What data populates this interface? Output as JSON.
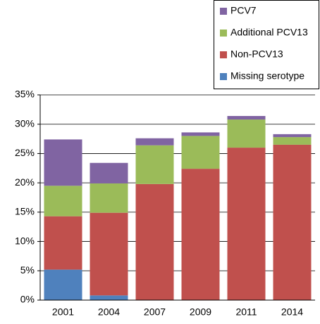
{
  "chart_data": {
    "type": "stacked_bar",
    "categories": [
      "2001",
      "2004",
      "2007",
      "2009",
      "2011",
      "2014"
    ],
    "series": [
      {
        "name": "Missing serotype",
        "color": "#4f81bd",
        "values": [
          5.2,
          0.8,
          0,
          0,
          0,
          0
        ]
      },
      {
        "name": "Non-PCV13",
        "color": "#c0504d",
        "values": [
          9.1,
          14.1,
          19.8,
          22.4,
          26.0,
          26.5
        ]
      },
      {
        "name": "Additional PCV13",
        "color": "#9bbb59",
        "values": [
          5.2,
          5.0,
          6.6,
          5.6,
          4.8,
          1.3
        ]
      },
      {
        "name": "PCV7",
        "color": "#8064a2",
        "values": [
          7.9,
          3.5,
          1.2,
          0.6,
          0.6,
          0.5
        ]
      }
    ],
    "ylim": [
      0,
      35
    ],
    "yticks": [
      {
        "value": 0,
        "label": "0%"
      },
      {
        "value": 5,
        "label": "5%"
      },
      {
        "value": 10,
        "label": "10%"
      },
      {
        "value": 15,
        "label": "15%"
      },
      {
        "value": 20,
        "label": "20%"
      },
      {
        "value": 25,
        "label": "25%"
      },
      {
        "value": 30,
        "label": "30%"
      },
      {
        "value": 35,
        "label": "35%"
      }
    ],
    "grid": true,
    "legend": "top-right"
  }
}
